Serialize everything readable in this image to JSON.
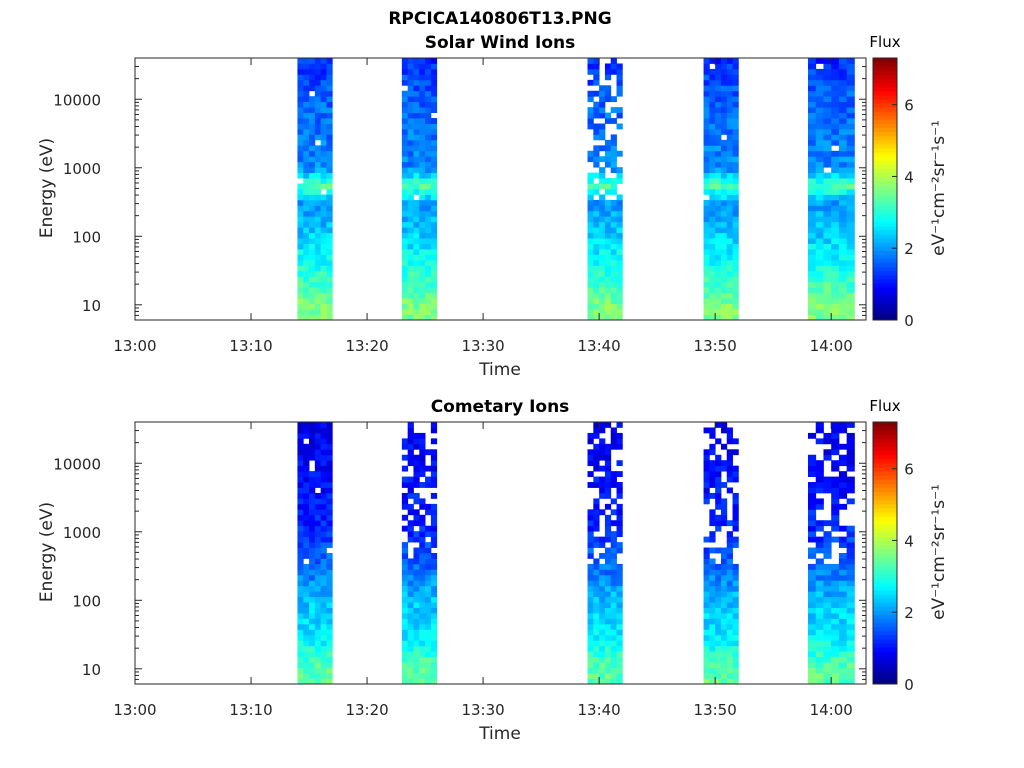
{
  "figure": {
    "title": "RPCICA140806T13.PNG"
  },
  "chart_data": [
    {
      "type": "heatmap",
      "title": "Solar Wind Ions",
      "xlabel": "Time",
      "ylabel": "Energy (eV)",
      "x_ticks": [
        "13:00",
        "13:10",
        "13:20",
        "13:30",
        "13:40",
        "13:50",
        "14:00"
      ],
      "x_range_minutes": [
        0,
        63
      ],
      "y_scale": "log",
      "y_ticks": [
        10,
        100,
        1000,
        10000
      ],
      "y_tick_labels": [
        "10",
        "100",
        "1000",
        "10000"
      ],
      "y_range": [
        6,
        40000
      ],
      "colorbar": {
        "title": "Flux",
        "label": "eV⁻¹cm⁻²sr⁻¹s⁻¹",
        "range": [
          0,
          7.3
        ],
        "ticks": [
          0,
          2,
          4,
          6
        ],
        "tick_labels": [
          "0",
          "2",
          "4",
          "6"
        ],
        "colormap": "jet"
      },
      "data_intervals": [
        {
          "start": "13:14",
          "end": "13:17",
          "sparse": false
        },
        {
          "start": "13:23",
          "end": "13:26",
          "sparse": false
        },
        {
          "start": "13:39",
          "end": "13:42",
          "sparse": true
        },
        {
          "start": "13:49",
          "end": "13:52",
          "sparse": false
        },
        {
          "start": "13:58",
          "end": "14:02",
          "sparse": false
        }
      ],
      "flux_profile": [
        {
          "energy": 10,
          "flux": 3.6
        },
        {
          "energy": 30,
          "flux": 3.0
        },
        {
          "energy": 100,
          "flux": 2.4
        },
        {
          "energy": 300,
          "flux": 2.0
        },
        {
          "energy": 550,
          "flux": 3.3
        },
        {
          "energy": 1000,
          "flux": 1.9
        },
        {
          "energy": 10000,
          "flux": 1.6
        },
        {
          "energy": 40000,
          "flux": 1.2
        }
      ],
      "grid": false
    },
    {
      "type": "heatmap",
      "title": "Cometary Ions",
      "xlabel": "Time",
      "ylabel": "Energy (eV)",
      "x_ticks": [
        "13:00",
        "13:10",
        "13:20",
        "13:30",
        "13:40",
        "13:50",
        "14:00"
      ],
      "x_range_minutes": [
        0,
        63
      ],
      "y_scale": "log",
      "y_ticks": [
        10,
        100,
        1000,
        10000
      ],
      "y_tick_labels": [
        "10",
        "100",
        "1000",
        "10000"
      ],
      "y_range": [
        6,
        40000
      ],
      "colorbar": {
        "title": "Flux",
        "label": "eV⁻¹cm⁻²sr⁻¹s⁻¹",
        "range": [
          0,
          7.3
        ],
        "ticks": [
          0,
          2,
          4,
          6
        ],
        "tick_labels": [
          "0",
          "2",
          "4",
          "6"
        ],
        "colormap": "jet"
      },
      "data_intervals": [
        {
          "start": "13:14",
          "end": "13:17",
          "sparse": false
        },
        {
          "start": "13:23",
          "end": "13:26",
          "sparse": true
        },
        {
          "start": "13:39",
          "end": "13:42",
          "sparse": true
        },
        {
          "start": "13:49",
          "end": "13:52",
          "sparse": true
        },
        {
          "start": "13:58",
          "end": "14:02",
          "sparse": true
        }
      ],
      "flux_profile": [
        {
          "energy": 10,
          "flux": 3.4
        },
        {
          "energy": 30,
          "flux": 2.6
        },
        {
          "energy": 100,
          "flux": 2.3
        },
        {
          "energy": 300,
          "flux": 1.7
        },
        {
          "energy": 1000,
          "flux": 1.2
        },
        {
          "energy": 10000,
          "flux": 0.9
        },
        {
          "energy": 40000,
          "flux": 0.8
        }
      ],
      "grid": false
    }
  ]
}
